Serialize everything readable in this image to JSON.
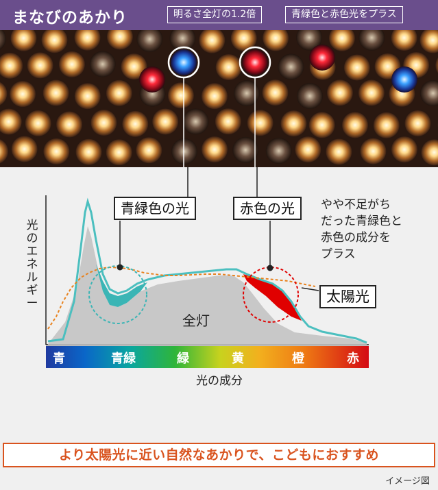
{
  "header": {
    "title": "まなびのあかり",
    "tags": [
      "明るさ全灯の1.2倍",
      "青緑色と赤色光をプラス"
    ]
  },
  "callouts": {
    "cyan_label": "青緑色の光",
    "red_label": "赤色の光",
    "note": [
      "やや不足がち",
      "だった青緑色と",
      "赤色の成分を",
      "プラス"
    ],
    "sun_label": "太陽光",
    "full_label": "全灯"
  },
  "chart_data": {
    "type": "area",
    "ylabel": "光のエネルギー",
    "xlabel": "光の成分",
    "categories": [
      "青",
      "青緑",
      "緑",
      "黄",
      "橙",
      "赤"
    ],
    "colors": {
      "manabi": "#4bbfbf",
      "full": "#c8c8c8",
      "sun": "#e8821e",
      "added_cyan": "#3ab5b5",
      "added_red": "#e00000"
    }
  },
  "footer": {
    "message": "より太陽光に近い自然なあかりで、こどもにおすすめ",
    "caption": "イメージ図"
  }
}
